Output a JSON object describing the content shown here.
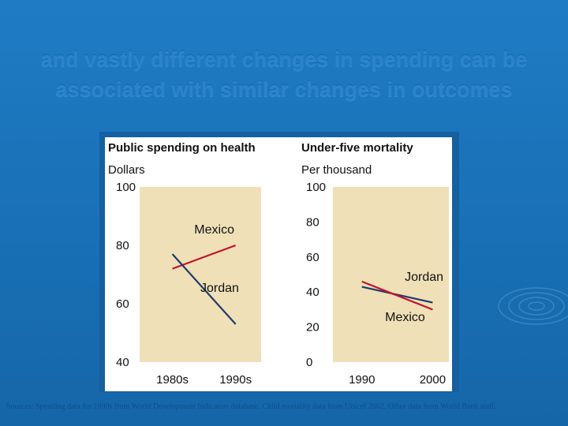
{
  "slide": {
    "title": "and vastly different changes in spending can be associated with similar changes in outcomes",
    "source": "Sources: Spending data for 1990s from World Development Indicators database. Child mortality data from Unicef 2002. Other data from World Bank staff."
  },
  "colors": {
    "background": "#1a72b8",
    "plot_bg": "#efe0b8",
    "mexico": "#c8102e",
    "jordan": "#1f3a6b"
  },
  "chart_data": [
    {
      "type": "line",
      "title": "Public spending on health",
      "ylabel": "Dollars",
      "categories": [
        "1980s",
        "1990s"
      ],
      "ylim": [
        40,
        100
      ],
      "yticks": [
        40,
        60,
        80,
        100
      ],
      "grid": false,
      "series": [
        {
          "name": "Mexico",
          "color": "#c8102e",
          "values": [
            72,
            80
          ]
        },
        {
          "name": "Jordan",
          "color": "#1f3a6b",
          "values": [
            77,
            53
          ]
        }
      ]
    },
    {
      "type": "line",
      "title": "Under-five mortality",
      "ylabel": "Per thousand",
      "categories": [
        "1990",
        "2000"
      ],
      "ylim": [
        0,
        100
      ],
      "yticks": [
        0,
        20,
        40,
        60,
        80,
        100
      ],
      "grid": false,
      "series": [
        {
          "name": "Jordan",
          "color": "#1f3a6b",
          "values": [
            43,
            34
          ]
        },
        {
          "name": "Mexico",
          "color": "#c8102e",
          "values": [
            46,
            30
          ]
        }
      ]
    }
  ]
}
